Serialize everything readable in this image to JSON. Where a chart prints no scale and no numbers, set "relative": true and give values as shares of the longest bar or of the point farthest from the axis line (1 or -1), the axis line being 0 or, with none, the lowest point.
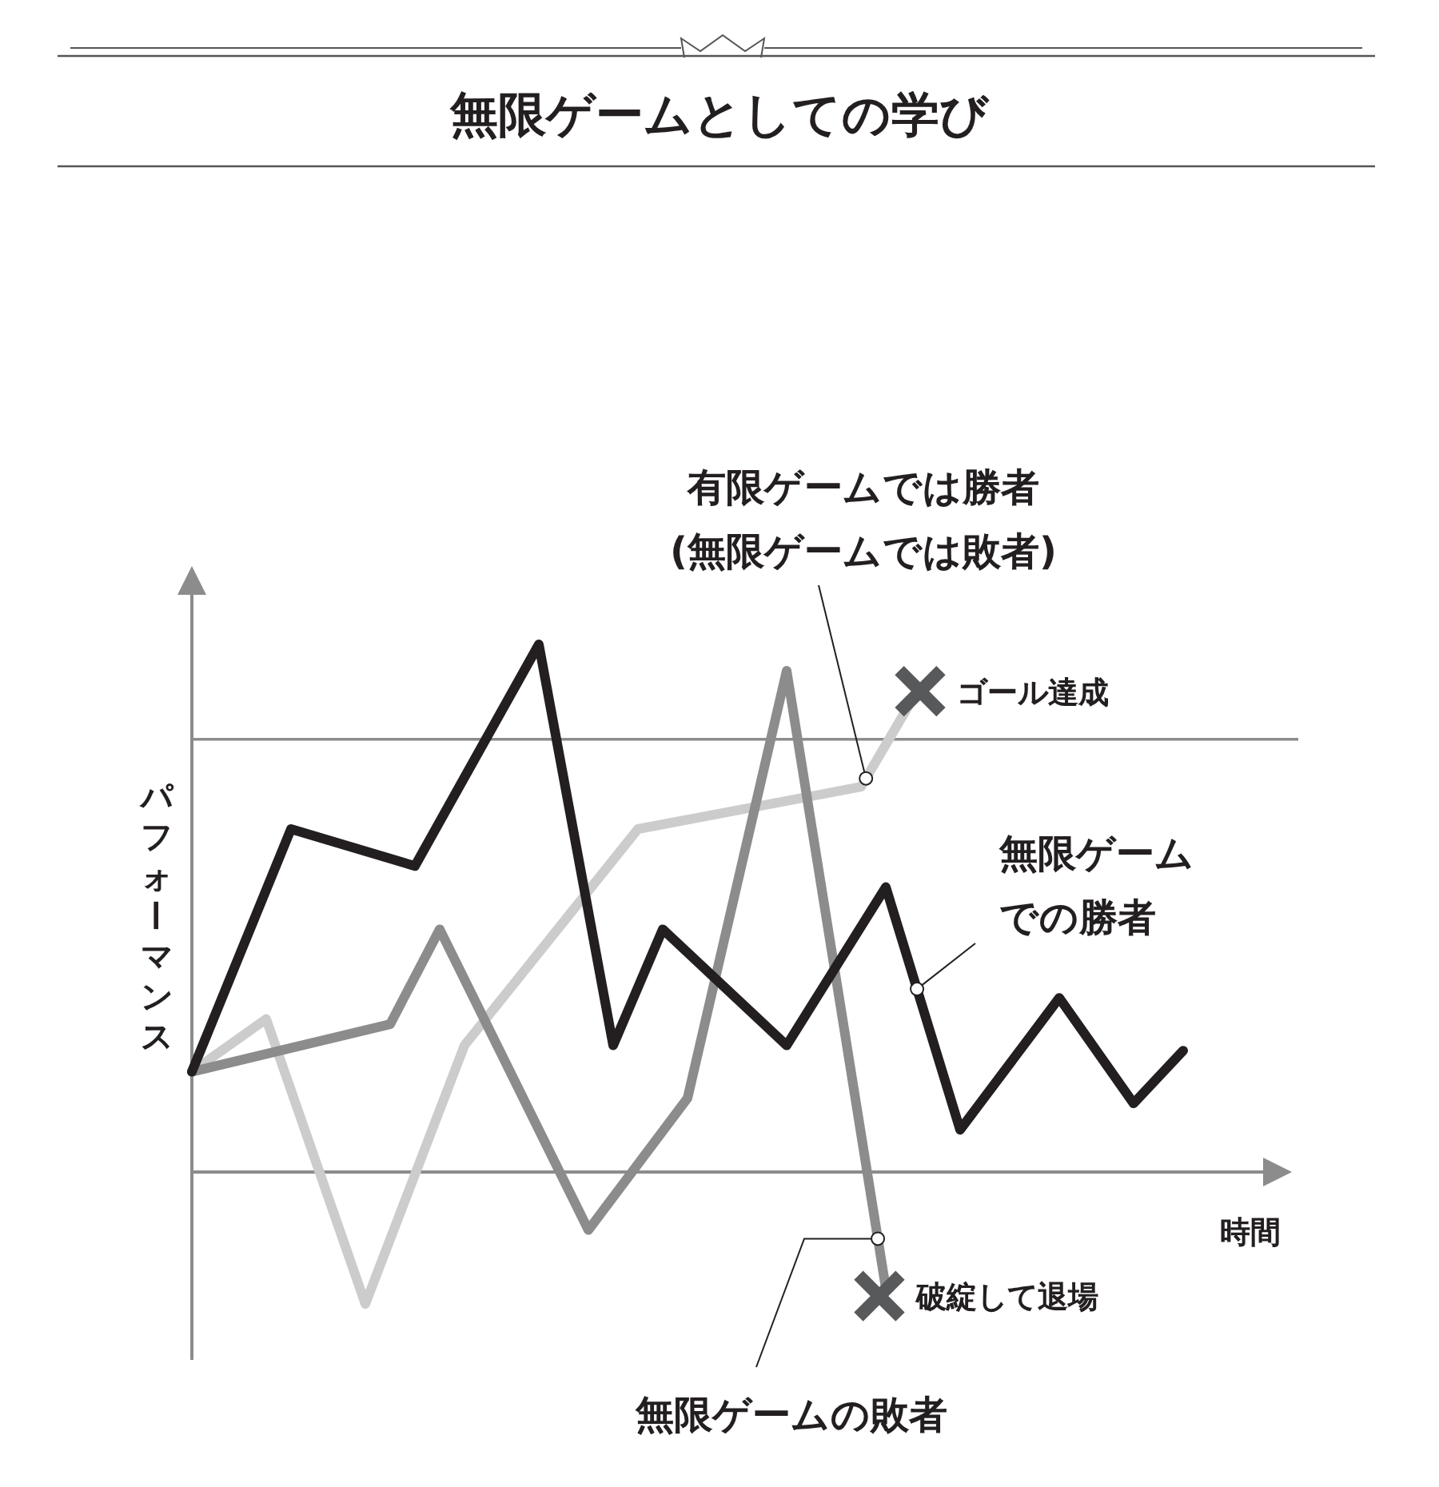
{
  "chart_data": {
    "type": "line",
    "relative": true,
    "title": "無限ゲームとしての学び",
    "xlabel": "時間",
    "ylabel": "パフォーマンス",
    "marker": "none",
    "line_style": "solid",
    "categories": [
      null,
      null,
      null,
      null,
      null,
      null,
      null,
      null,
      null,
      null,
      null,
      null,
      null,
      null,
      null,
      null,
      null,
      null,
      null,
      null,
      null,
      null,
      null,
      null,
      null,
      null,
      null,
      null,
      null,
      null,
      null,
      null,
      null,
      null,
      null,
      null,
      null,
      null,
      null,
      null,
      null,
      null,
      null,
      null
    ],
    "series": [
      {
        "name": "無限ゲームでの勝者",
        "color": "#231f20",
        "values": [
          0.19,
          null,
          null,
          null,
          0.65,
          null,
          null,
          null,
          null,
          0.58,
          null,
          null,
          null,
          null,
          1.0,
          null,
          null,
          0.24,
          null,
          0.46,
          null,
          null,
          null,
          null,
          0.24,
          null,
          null,
          null,
          0.54,
          null,
          null,
          0.08,
          null,
          null,
          null,
          0.33,
          null,
          null,
          0.13,
          null,
          0.23,
          null,
          null,
          null
        ]
      },
      {
        "name": "有限ゲームでは勝者\n(無限ゲームでは敗者)",
        "color": "#cccccc",
        "values": [
          0.19,
          null,
          null,
          0.29,
          null,
          null,
          null,
          -0.25,
          null,
          null,
          null,
          0.24,
          null,
          null,
          null,
          null,
          null,
          null,
          0.65,
          null,
          null,
          null,
          null,
          null,
          null,
          null,
          null,
          0.73,
          null,
          0.89,
          null,
          null,
          null,
          null,
          null,
          null,
          null,
          null,
          null,
          null,
          null,
          null,
          null,
          null
        ]
      },
      {
        "name": "無限ゲームの敗者",
        "color": "#8c8c8c",
        "values": [
          0.19,
          null,
          null,
          null,
          null,
          null,
          null,
          null,
          0.28,
          null,
          0.46,
          null,
          null,
          null,
          null,
          null,
          -0.11,
          null,
          null,
          null,
          0.14,
          null,
          null,
          null,
          0.95,
          null,
          null,
          null,
          -0.22,
          null,
          null,
          null,
          null,
          null,
          null,
          null,
          null,
          null,
          null,
          null,
          null,
          null,
          null,
          null
        ]
      }
    ],
    "ref_lines": [
      {
        "axis": "y",
        "value": 0.82,
        "color": "#8c8c8c"
      }
    ],
    "annotations": [
      "ゴール達成",
      "破綻して退場"
    ]
  }
}
